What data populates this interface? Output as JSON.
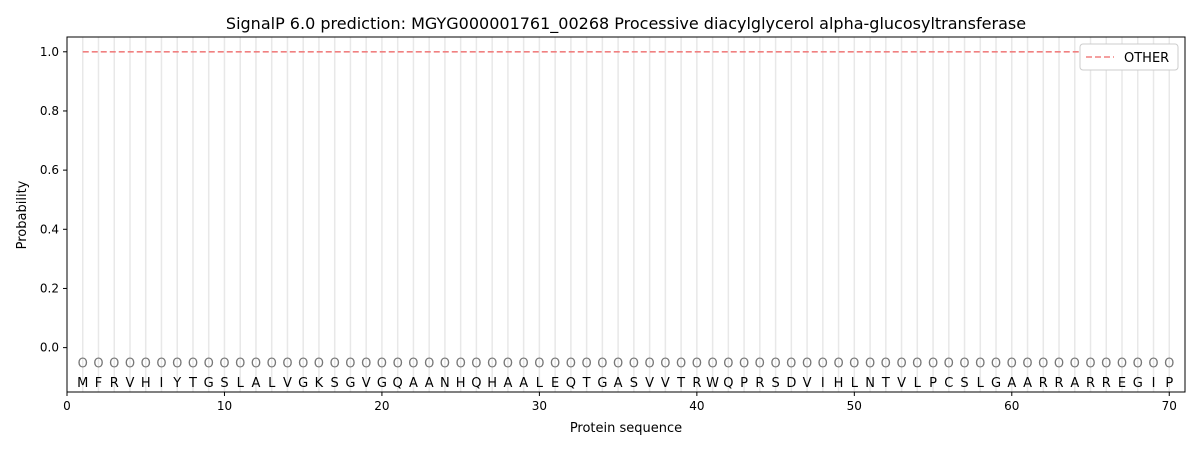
{
  "chart_data": {
    "type": "line",
    "title": "SignalP 6.0 prediction: MGYG000001761_00268 Processive diacylglycerol alpha-glucosyltransferase",
    "xlabel": "Protein sequence",
    "ylabel": "Probability",
    "xlim": [
      0,
      71
    ],
    "ylim": [
      -0.15,
      1.05
    ],
    "xticks": [
      0,
      10,
      20,
      30,
      40,
      50,
      60,
      70
    ],
    "yticks": [
      0.0,
      0.2,
      0.4,
      0.6,
      0.8,
      1.0
    ],
    "grid": "vertical lines at each residue",
    "legend_position": "top-right",
    "sequence": [
      "M",
      "F",
      "R",
      "V",
      "H",
      "I",
      "Y",
      "T",
      "G",
      "S",
      "L",
      "A",
      "L",
      "V",
      "G",
      "K",
      "S",
      "G",
      "V",
      "G",
      "Q",
      "A",
      "A",
      "N",
      "H",
      "Q",
      "H",
      "A",
      "A",
      "L",
      "E",
      "Q",
      "T",
      "G",
      "A",
      "S",
      "V",
      "V",
      "T",
      "R",
      "W",
      "Q",
      "P",
      "R",
      "S",
      "D",
      "V",
      "I",
      "H",
      "L",
      "N",
      "T",
      "V",
      "L",
      "P",
      "C",
      "S",
      "L",
      "G",
      "A",
      "A",
      "R",
      "R",
      "A",
      "R",
      "R",
      "E",
      "G",
      "I",
      "P"
    ],
    "predicted_labels": "OOOOOOOOOOOOOOOOOOOOOOOOOOOOOOOOOOOOOOOOOOOOOOOOOOOOOOOOOOOOOOOOOOOOOO",
    "series": [
      {
        "name": "OTHER",
        "color": "#f08080",
        "style": "dashed",
        "x_range": [
          1,
          70
        ],
        "value": 1.0
      }
    ]
  }
}
